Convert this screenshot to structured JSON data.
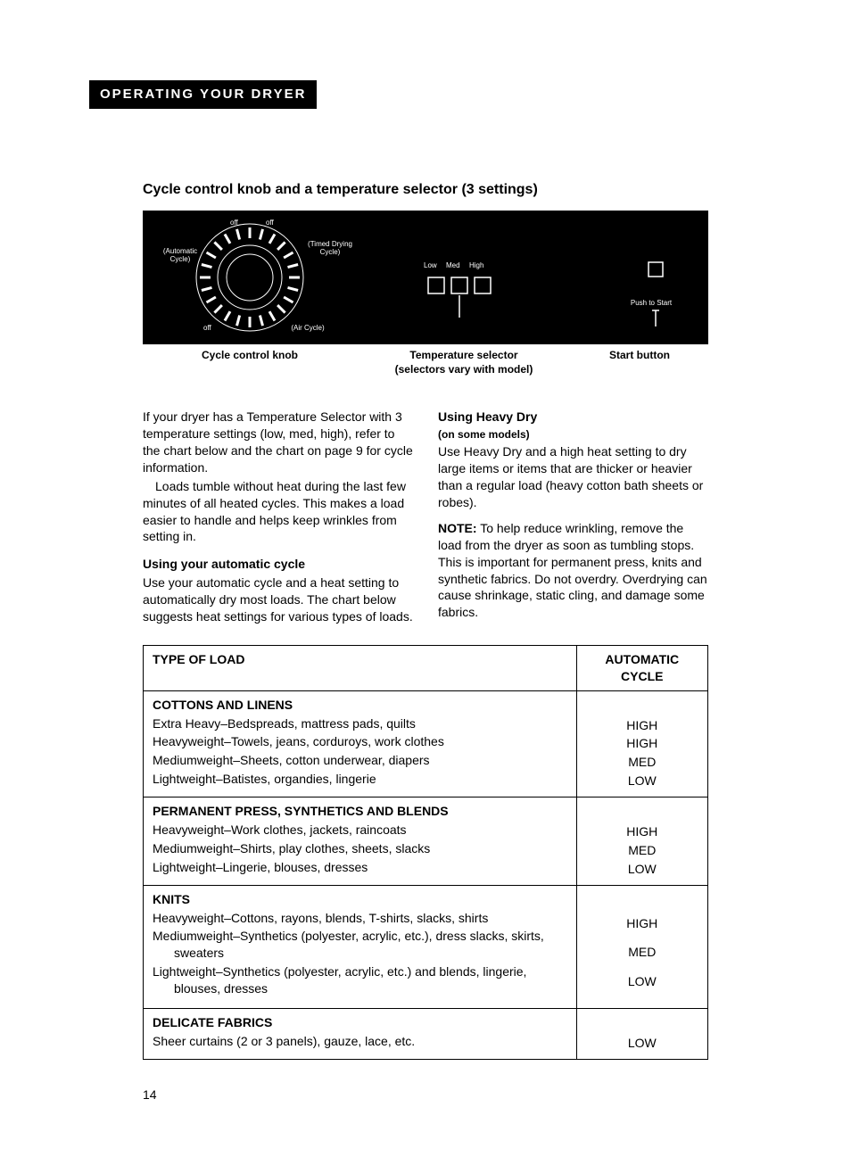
{
  "section_header": "OPERATING YOUR DRYER",
  "sub_heading": "Cycle control knob and a temperature selector (3 settings)",
  "panel": {
    "bg": "#000000",
    "fg": "#ffffff",
    "lbl_auto": "(Automatic Cycle)",
    "lbl_timed": "(Timed Drying Cycle)",
    "lbl_air": "(Air Cycle)",
    "lbl_off1": "off",
    "lbl_off2": "off",
    "lbl_off3": "off",
    "temp_low": "Low",
    "temp_med": "Med",
    "temp_high": "High",
    "push_to_start": "Push to Start"
  },
  "captions": {
    "knob": "Cycle control knob",
    "temp": "Temperature selector",
    "temp_sub": "(selectors vary with model)",
    "start": "Start button"
  },
  "left": {
    "p1a": "If your dryer has a Temperature Selector with 3 temperature settings (low, med, high), refer to the chart below and the chart on page 9 for cycle information.",
    "p1b": "Loads tumble without heat during the last few minutes of all heated cycles. This makes a load easier to handle and helps keep wrinkles from setting in.",
    "h1": "Using your automatic cycle",
    "p2": "Use your automatic cycle and a heat setting to automatically dry most loads. The chart below suggests heat settings for various types of loads."
  },
  "right": {
    "h1": "Using Heavy Dry",
    "h1sub": "(on some models)",
    "p1": "Use Heavy Dry and a high heat setting to dry large items or items that are thicker or heavier than a regular load (heavy cotton bath sheets or robes).",
    "note_label": "NOTE:",
    "p2": " To help reduce wrinkling, remove the load from the dryer as soon as tumbling stops. This is important for permanent press, knits and synthetic fabrics. Do not overdry. Overdrying can cause shrinkage, static cling, and damage some fabrics."
  },
  "table": {
    "h1": "TYPE OF LOAD",
    "h2": "AUTOMATIC CYCLE",
    "rows": [
      {
        "title": "COTTONS AND LINENS",
        "items": [
          "Extra Heavy–Bedspreads, mattress pads, quilts",
          "Heavyweight–Towels, jeans, corduroys, work clothes",
          "Mediumweight–Sheets, cotton underwear, diapers",
          "Lightweight–Batistes, organdies, lingerie"
        ],
        "cycles": [
          "HIGH",
          "HIGH",
          "MED",
          "LOW"
        ],
        "lead_blanks": 1
      },
      {
        "title": "PERMANENT PRESS, SYNTHETICS AND BLENDS",
        "items": [
          "Heavyweight–Work clothes, jackets, raincoats",
          "Mediumweight–Shirts, play clothes, sheets, slacks",
          "Lightweight–Lingerie, blouses, dresses"
        ],
        "cycles": [
          "HIGH",
          "MED",
          "LOW"
        ],
        "lead_blanks": 1
      },
      {
        "title": "KNITS",
        "items": [
          "Heavyweight–Cottons, rayons, blends, T-shirts, slacks, shirts",
          "Mediumweight–Synthetics (polyester, acrylic, etc.), dress slacks, skirts, sweaters",
          "Lightweight–Synthetics (polyester, acrylic, etc.) and blends, lingerie, blouses, dresses"
        ],
        "cycles": [
          "HIGH",
          "MED",
          "LOW"
        ],
        "lead_blanks": 1,
        "wrap": true
      },
      {
        "title": "DELICATE FABRICS",
        "items": [
          "Sheer curtains (2 or 3 panels), gauze, lace, etc."
        ],
        "cycles": [
          "LOW"
        ],
        "lead_blanks": 1
      }
    ]
  },
  "page_number": "14"
}
